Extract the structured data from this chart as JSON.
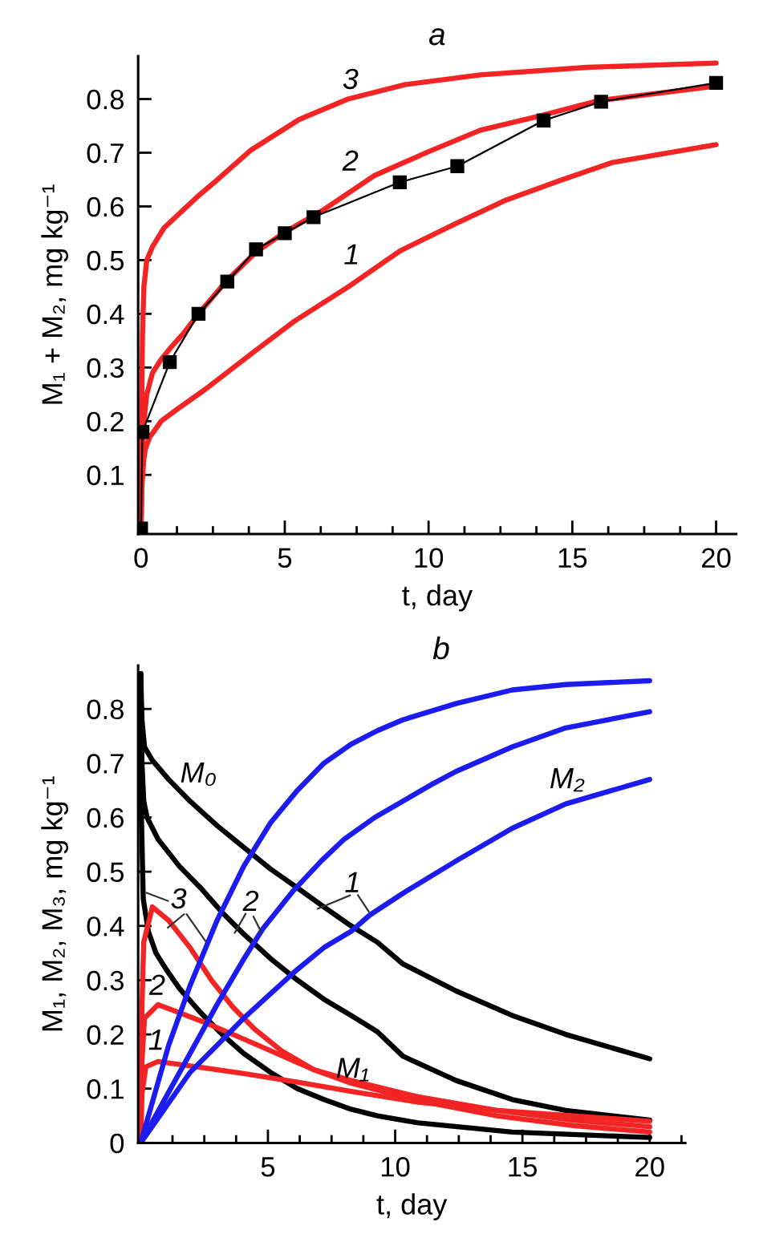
{
  "chart_data": [
    {
      "type": "line",
      "title": "a",
      "xlabel": "t, day",
      "ylabel": "M₁ + M₂, mg kg⁻¹",
      "xlim": [
        -0.1,
        20.7
      ],
      "ylim": [
        -0.01,
        0.88
      ],
      "xticks": [
        0,
        5,
        10,
        15,
        20
      ],
      "yticks": [
        0.1,
        0.2,
        0.3,
        0.4,
        0.5,
        0.6,
        0.7,
        0.8
      ],
      "series": [
        {
          "color": "#f22424",
          "x": [
            0,
            0.02,
            0.05,
            0.1,
            0.2,
            0.4,
            0.8,
            1.4,
            2.0,
            2.6,
            3.8,
            5.5,
            7.2,
            9.2,
            11.8,
            15.5,
            20
          ],
          "values": [
            0,
            0.2,
            0.36,
            0.45,
            0.5,
            0.525,
            0.56,
            0.59,
            0.62,
            0.647,
            0.704,
            0.762,
            0.8,
            0.827,
            0.845,
            0.859,
            0.867
          ]
        },
        {
          "color": "#f22424",
          "x": [
            0,
            0.03,
            0.1,
            0.2,
            0.4,
            0.7,
            1.0,
            1.5,
            2.0,
            3.0,
            4.0,
            5.0,
            6.3,
            8.1,
            10,
            11.8,
            13.9,
            15.9,
            20
          ],
          "values": [
            0,
            0.12,
            0.2,
            0.25,
            0.29,
            0.315,
            0.335,
            0.365,
            0.4,
            0.463,
            0.515,
            0.552,
            0.592,
            0.657,
            0.702,
            0.742,
            0.769,
            0.797,
            0.824
          ]
        },
        {
          "color": "#f22424",
          "x": [
            0,
            0.03,
            0.1,
            0.15,
            0.3,
            0.7,
            1.2,
            2.2,
            3.9,
            5.3,
            7.2,
            9.0,
            10.9,
            12.7,
            14.6,
            16.4,
            20
          ],
          "values": [
            0,
            0.08,
            0.13,
            0.148,
            0.17,
            0.2,
            0.22,
            0.258,
            0.328,
            0.385,
            0.45,
            0.517,
            0.567,
            0.612,
            0.649,
            0.682,
            0.715
          ]
        },
        {
          "color": "#000000",
          "marker": "square",
          "x": [
            0,
            0.05,
            1,
            2,
            3,
            4,
            5,
            6,
            9,
            11,
            14,
            16,
            20
          ],
          "values": [
            0,
            0.18,
            0.31,
            0.4,
            0.46,
            0.52,
            0.55,
            0.58,
            0.645,
            0.675,
            0.76,
            0.795,
            0.83
          ]
        }
      ],
      "annotations": [
        "3",
        "2",
        "1"
      ]
    },
    {
      "type": "line",
      "title": "b",
      "xlabel": "t, day",
      "ylabel": "M₁, M₂, M₃, mg kg⁻¹",
      "xlim": [
        -0.1,
        21.4
      ],
      "ylim": [
        0,
        0.88
      ],
      "xticks": [
        5,
        10,
        15,
        20
      ],
      "yticks": [
        0,
        0.1,
        0.2,
        0.3,
        0.4,
        0.5,
        0.6,
        0.7,
        0.8
      ],
      "series": [
        {
          "color": "#000000",
          "x": [
            0,
            0.05,
            0.15,
            0.46,
            1.1,
            1.94,
            3.0,
            4.05,
            5.1,
            6.16,
            7.2,
            8.27,
            9.3,
            10.3,
            12.4,
            14.6,
            16.7,
            20
          ],
          "values": [
            0.865,
            0.78,
            0.73,
            0.705,
            0.67,
            0.63,
            0.585,
            0.545,
            0.505,
            0.47,
            0.435,
            0.4,
            0.37,
            0.33,
            0.28,
            0.235,
            0.2,
            0.155
          ]
        },
        {
          "color": "#000000",
          "x": [
            0,
            0.05,
            0.12,
            0.25,
            0.68,
            1.52,
            2.36,
            3.2,
            4.05,
            5.1,
            6.16,
            7.2,
            8.27,
            9.3,
            10.3,
            12.4,
            14.6,
            16.7,
            20
          ],
          "values": [
            0.865,
            0.7,
            0.63,
            0.6,
            0.56,
            0.51,
            0.47,
            0.425,
            0.385,
            0.34,
            0.3,
            0.265,
            0.235,
            0.205,
            0.16,
            0.115,
            0.08,
            0.06,
            0.042
          ]
        },
        {
          "color": "#000000",
          "x": [
            0,
            0.03,
            0.1,
            0.3,
            0.6,
            1.0,
            1.52,
            2.36,
            3.2,
            4.05,
            5.1,
            6.16,
            7.2,
            8.27,
            9.3,
            10.9,
            14.6,
            20
          ],
          "values": [
            0.865,
            0.6,
            0.45,
            0.39,
            0.35,
            0.32,
            0.285,
            0.24,
            0.2,
            0.165,
            0.13,
            0.1,
            0.08,
            0.062,
            0.05,
            0.037,
            0.02,
            0.01
          ]
        },
        {
          "color": "#f22424",
          "x": [
            0,
            0.05,
            0.12,
            0.46,
            1.1,
            1.94,
            2.78,
            3.63,
            4.47,
            5.53,
            6.8,
            8.27,
            10.9,
            14,
            17,
            20
          ],
          "values": [
            0,
            0.25,
            0.37,
            0.435,
            0.41,
            0.36,
            0.3,
            0.25,
            0.21,
            0.17,
            0.135,
            0.11,
            0.078,
            0.05,
            0.032,
            0.02
          ]
        },
        {
          "color": "#f22424",
          "x": [
            0,
            0.05,
            0.15,
            0.68,
            1.52,
            2.36,
            3.63,
            5.1,
            6.8,
            8.27,
            10.9,
            14,
            17,
            20
          ],
          "values": [
            0,
            0.15,
            0.23,
            0.255,
            0.24,
            0.225,
            0.2,
            0.17,
            0.135,
            0.115,
            0.085,
            0.06,
            0.042,
            0.03
          ]
        },
        {
          "color": "#f22424",
          "x": [
            0,
            0.05,
            0.2,
            0.68,
            1.94,
            4.05,
            6.16,
            8.27,
            10.9,
            14,
            17,
            20
          ],
          "values": [
            0,
            0.09,
            0.14,
            0.15,
            0.142,
            0.128,
            0.112,
            0.095,
            0.075,
            0.06,
            0.05,
            0.04
          ]
        },
        {
          "color": "#1c1cf0",
          "x": [
            0,
            1.1,
            1.94,
            3.0,
            4.05,
            5.1,
            6.16,
            7.2,
            8.27,
            9.3,
            10.3,
            12.4,
            14.6,
            16.7,
            20
          ],
          "values": [
            0,
            0.18,
            0.29,
            0.41,
            0.51,
            0.59,
            0.65,
            0.7,
            0.735,
            0.76,
            0.78,
            0.81,
            0.835,
            0.845,
            0.852
          ]
        },
        {
          "color": "#1c1cf0",
          "x": [
            0,
            1,
            2,
            3,
            4,
            4.8,
            6,
            7.1,
            8,
            9.2,
            10.3,
            11.4,
            12.4,
            14.6,
            16.7,
            20
          ],
          "values": [
            0,
            0.085,
            0.17,
            0.255,
            0.335,
            0.395,
            0.465,
            0.52,
            0.56,
            0.6,
            0.63,
            0.66,
            0.685,
            0.73,
            0.765,
            0.795
          ]
        },
        {
          "color": "#1c1cf0",
          "x": [
            0,
            1.94,
            3.0,
            4.05,
            5.1,
            6.16,
            7.2,
            8.27,
            9.0,
            10.3,
            12.4,
            14.6,
            16.7,
            20
          ],
          "values": [
            0,
            0.13,
            0.18,
            0.23,
            0.275,
            0.32,
            0.36,
            0.39,
            0.42,
            0.46,
            0.52,
            0.58,
            0.625,
            0.67
          ]
        }
      ],
      "annotations": [
        "M₀",
        "M₂",
        "3",
        "2",
        "1",
        "2",
        "1",
        "M₁"
      ]
    }
  ]
}
